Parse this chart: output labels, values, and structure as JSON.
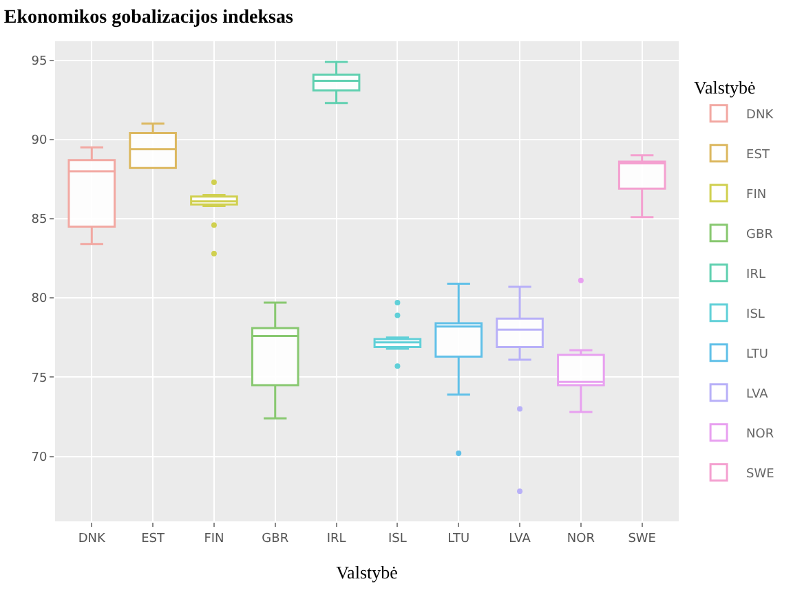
{
  "chart_data": {
    "type": "box",
    "title": "Ekonomikos gobalizacijos indeksas",
    "xlabel": "Valstybė",
    "legend_title": "Valstybė",
    "legend": "right",
    "grid": true,
    "categories": [
      "DNK",
      "EST",
      "FIN",
      "GBR",
      "IRL",
      "ISL",
      "LTU",
      "LVA",
      "NOR",
      "SWE"
    ],
    "series": [
      {
        "name": "DNK",
        "color": "#f2a8a2",
        "boxes": [
          {
            "low": 83.4,
            "q1": 84.5,
            "median": 88.0,
            "q3": 88.7,
            "high": 89.5
          },
          null,
          null,
          null,
          null,
          null,
          null,
          null,
          null,
          null
        ]
      },
      {
        "name": "EST",
        "color": "#dcb860",
        "boxes": [
          null,
          {
            "low": 88.2,
            "q1": 88.2,
            "median": 89.4,
            "q3": 90.4,
            "high": 91.0
          },
          null,
          null,
          null,
          null,
          null,
          null,
          null,
          null
        ]
      },
      {
        "name": "FIN",
        "color": "#d0d050",
        "boxes": [
          null,
          null,
          {
            "low": 85.8,
            "q1": 85.9,
            "median": 86.1,
            "q3": 86.4,
            "high": 86.5,
            "outliers": [
              87.3,
              84.6,
              82.8
            ]
          },
          null,
          null,
          null,
          null,
          null,
          null,
          null
        ]
      },
      {
        "name": "GBR",
        "color": "#88c870",
        "boxes": [
          null,
          null,
          null,
          {
            "low": 72.4,
            "q1": 74.5,
            "median": 77.6,
            "q3": 78.1,
            "high": 79.7
          },
          null,
          null,
          null,
          null,
          null,
          null
        ]
      },
      {
        "name": "IRL",
        "color": "#60d0b0",
        "boxes": [
          null,
          null,
          null,
          null,
          {
            "low": 92.3,
            "q1": 93.1,
            "median": 93.7,
            "q3": 94.1,
            "high": 94.9
          },
          null,
          null,
          null,
          null,
          null
        ]
      },
      {
        "name": "ISL",
        "color": "#60d0d8",
        "boxes": [
          null,
          null,
          null,
          null,
          null,
          {
            "low": 76.8,
            "q1": 76.9,
            "median": 77.2,
            "q3": 77.4,
            "high": 77.5,
            "outliers": [
              79.7,
              78.9,
              75.7
            ]
          },
          null,
          null,
          null,
          null
        ]
      },
      {
        "name": "LTU",
        "color": "#60c0e8",
        "boxes": [
          null,
          null,
          null,
          null,
          null,
          null,
          {
            "low": 73.9,
            "q1": 76.3,
            "median": 78.2,
            "q3": 78.4,
            "high": 80.9,
            "outliers": [
              70.2
            ]
          },
          null,
          null,
          null
        ]
      },
      {
        "name": "LVA",
        "color": "#b8b0f8",
        "boxes": [
          null,
          null,
          null,
          null,
          null,
          null,
          null,
          {
            "low": 76.1,
            "q1": 76.9,
            "median": 78.0,
            "q3": 78.7,
            "high": 80.7,
            "outliers": [
              73.0,
              67.8
            ]
          },
          null,
          null
        ]
      },
      {
        "name": "NOR",
        "color": "#e8a0f0",
        "boxes": [
          null,
          null,
          null,
          null,
          null,
          null,
          null,
          null,
          {
            "low": 72.8,
            "q1": 74.5,
            "median": 74.7,
            "q3": 76.4,
            "high": 76.7,
            "outliers": [
              81.1
            ]
          },
          null
        ]
      },
      {
        "name": "SWE",
        "color": "#f4a0d0",
        "boxes": [
          null,
          null,
          null,
          null,
          null,
          null,
          null,
          null,
          null,
          {
            "low": 85.1,
            "q1": 86.9,
            "median": 88.5,
            "q3": 88.6,
            "high": 89.0
          }
        ]
      }
    ],
    "ylim": [
      65.9,
      96.2
    ],
    "yticks": [
      70,
      75,
      80,
      85,
      90,
      95
    ]
  }
}
